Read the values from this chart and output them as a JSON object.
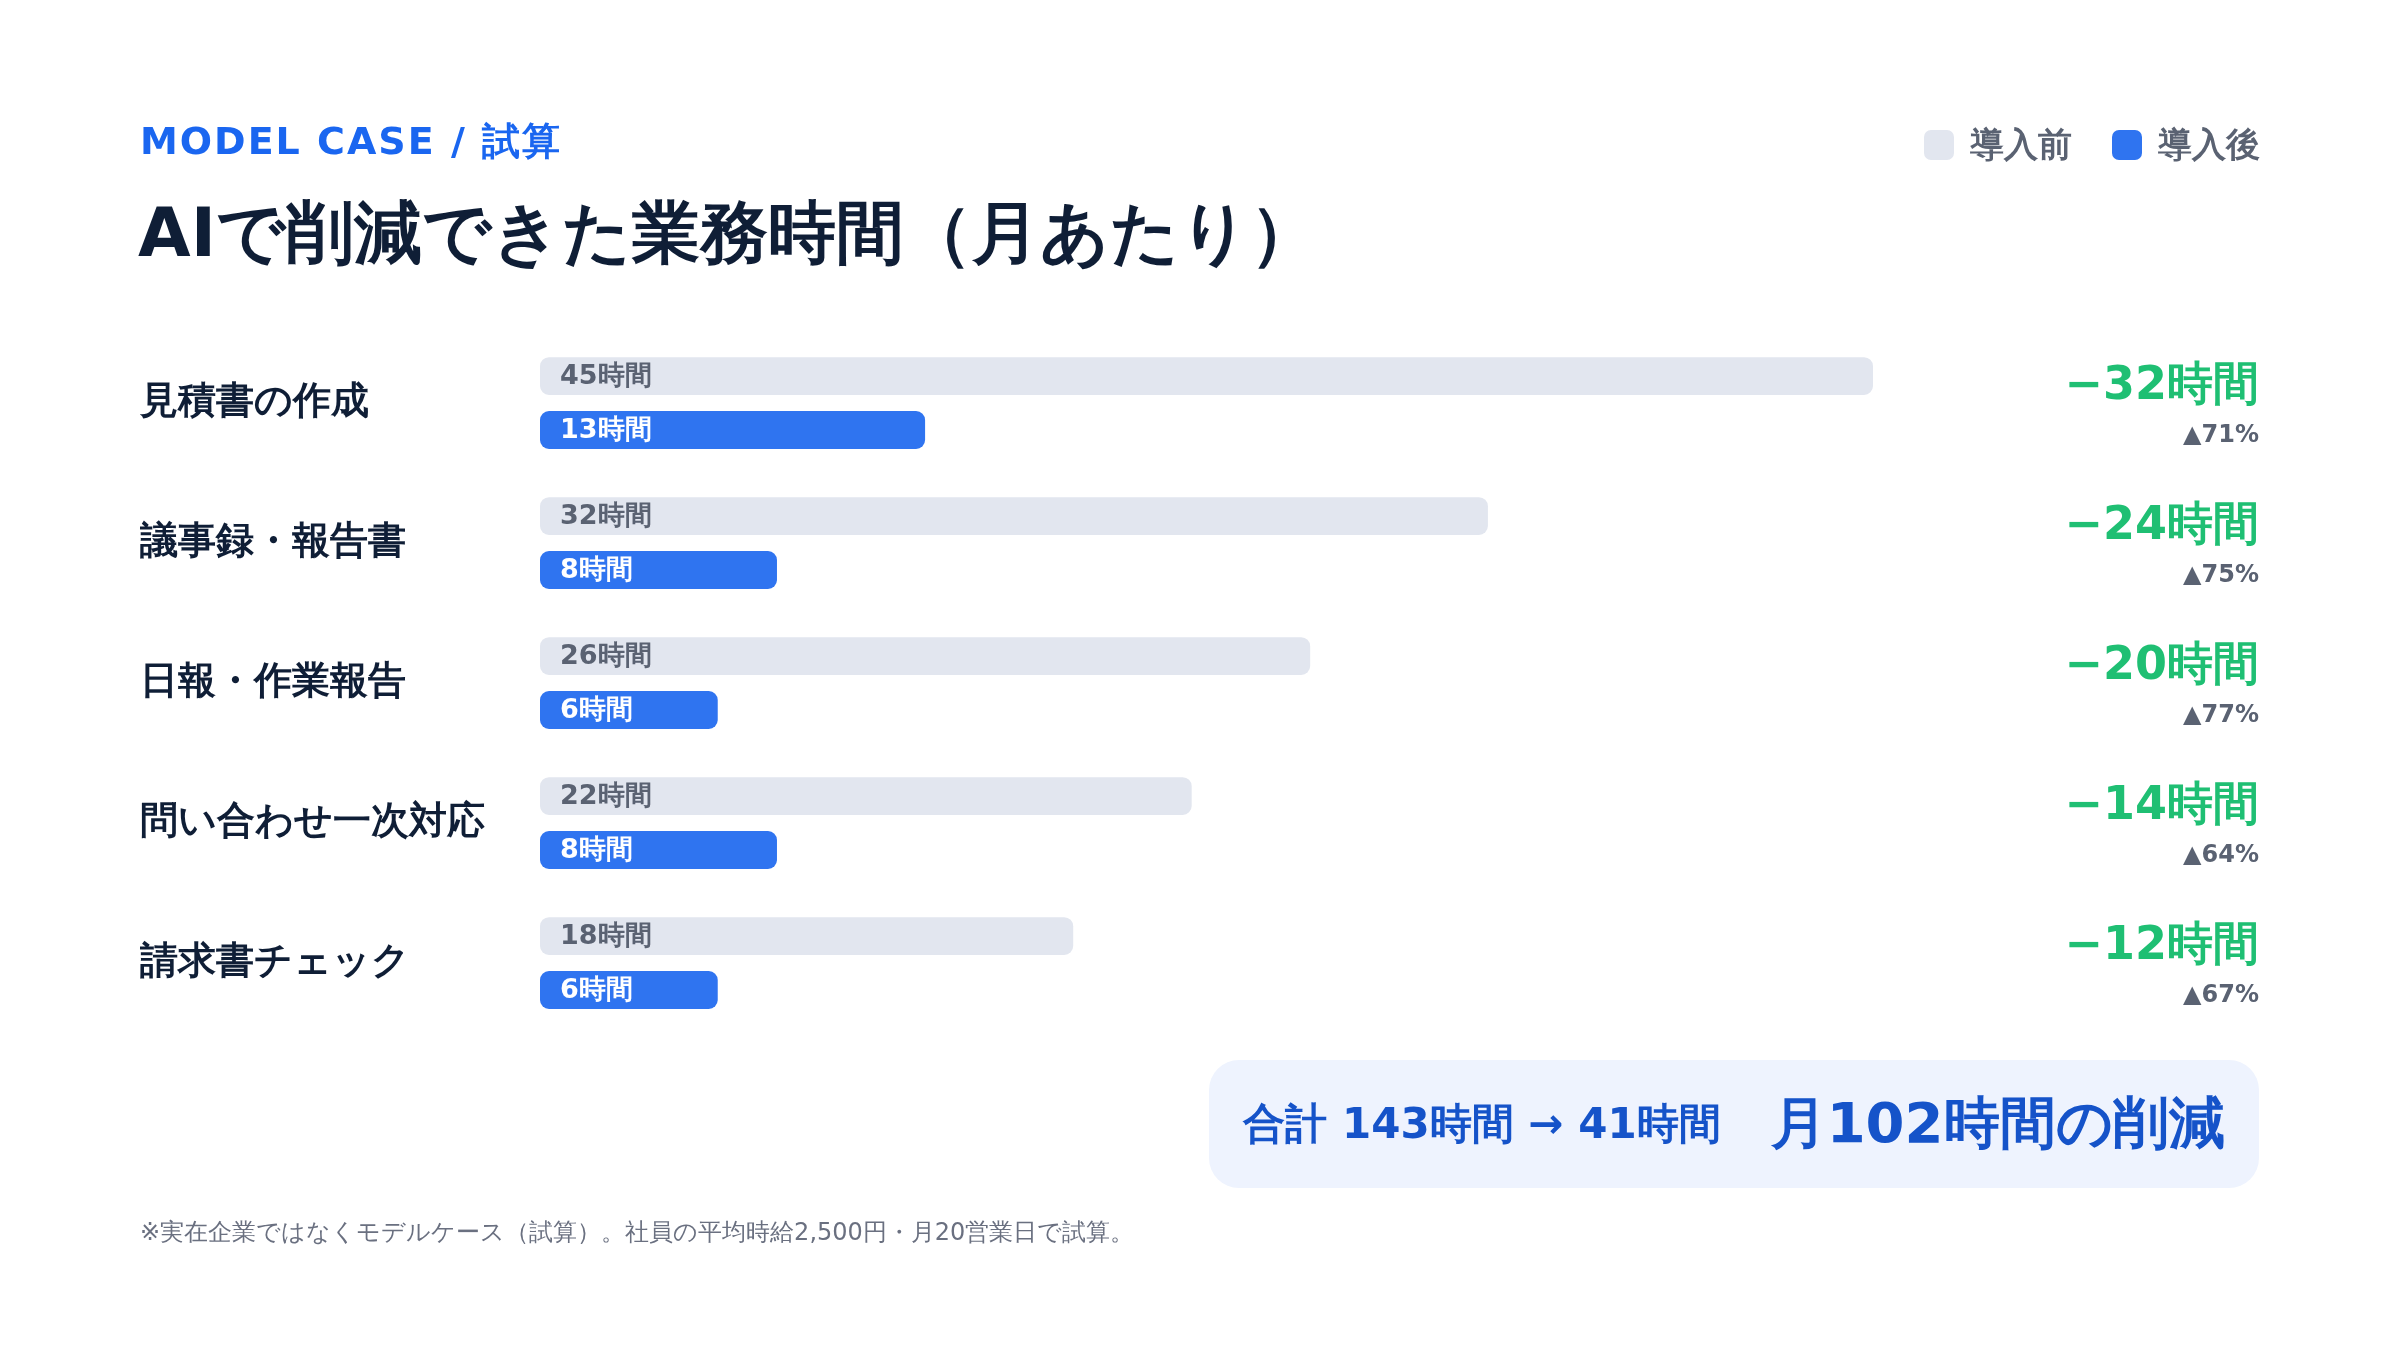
{
  "chart_data": {
    "type": "bar",
    "orientation": "horizontal",
    "subtitle": "MODEL CASE / 試算",
    "title": "AIで削減できた業務時間（月あたり）",
    "categories": [
      "見積書の作成",
      "議事録・報告書",
      "日報・作業報告",
      "問い合わせ一次対応",
      "請求書チェック"
    ],
    "series": [
      {
        "name": "導入前",
        "color": "#e2e6ef",
        "values": [
          45,
          32,
          26,
          22,
          18
        ],
        "value_labels": [
          "45時間",
          "32時間",
          "26時間",
          "22時間",
          "18時間"
        ]
      },
      {
        "name": "導入後",
        "color": "#2f74f0",
        "values": [
          13,
          8,
          6,
          8,
          6
        ],
        "value_labels": [
          "13時間",
          "8時間",
          "6時間",
          "8時間",
          "6時間"
        ]
      }
    ],
    "tick_labels": "y",
    "legend": "top right",
    "annotations": [
      "−32時間",
      "▲71%",
      "−24時間",
      "▲75%",
      "−20時間",
      "▲77%",
      "−14時間",
      "▲64%",
      "−12時間",
      "▲67%",
      "合計 143時間 → 41時間",
      "月102時間の削減",
      "※実在企業ではなくモデルケース（試算）。社員の平均時給2,500円・月20営業日で試算。"
    ]
  }
}
